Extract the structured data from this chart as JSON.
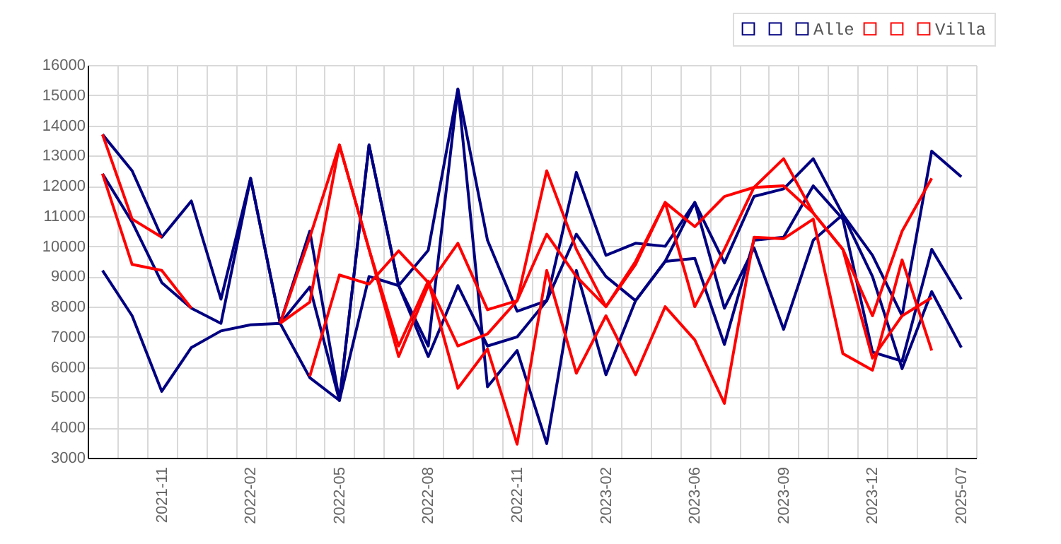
{
  "chart_data": {
    "type": "line",
    "categories": [
      null,
      null,
      "2021-11",
      null,
      null,
      "2022-02",
      null,
      null,
      "2022-05",
      null,
      null,
      "2022-08",
      null,
      null,
      "2022-11",
      null,
      null,
      "2023-02",
      null,
      null,
      "2023-06",
      null,
      null,
      "2023-09",
      null,
      null,
      "2023-12",
      null,
      null,
      "2025-07"
    ],
    "series": [
      {
        "color": "#000080",
        "values": [
          13700,
          12500,
          10300,
          11500,
          8250,
          12250,
          7450,
          10500,
          4900,
          13350,
          8700,
          6700,
          15200,
          10200,
          7850,
          8200,
          12450,
          9700,
          10100,
          10000,
          11450,
          9450,
          11650,
          11900,
          12900,
          11050,
          9700,
          7700,
          13150,
          12300
        ]
      },
      {
        "color": "#000080",
        "values": [
          12400,
          10800,
          8800,
          7950,
          7450,
          12250,
          7450,
          8650,
          4900,
          13350,
          8700,
          9870,
          15200,
          5350,
          6550,
          3470,
          9200,
          5750,
          8200,
          9500,
          9600,
          6750,
          10200,
          10300,
          12000,
          10900,
          6500,
          6200,
          9900,
          8250
        ]
      },
      {
        "name": "Alle",
        "color": "#000080",
        "values": [
          9200,
          7700,
          5200,
          6650,
          7200,
          7400,
          7450,
          5650,
          4900,
          9000,
          8700,
          6350,
          8700,
          6700,
          7000,
          8200,
          10400,
          9000,
          8200,
          9500,
          11450,
          7950,
          9950,
          7250,
          10200,
          11050,
          9000,
          5950,
          8500,
          6650
        ]
      },
      {
        "color": "#ff0000",
        "values": [
          13700,
          10900,
          10300,
          null,
          null,
          null,
          7450,
          10300,
          13350,
          9900,
          6350,
          8700,
          10100,
          7900,
          8200,
          12500,
          9900,
          8000,
          9500,
          11450,
          10650,
          11650,
          11950,
          12000,
          11100,
          9900,
          7700,
          10500,
          12250,
          null
        ]
      },
      {
        "color": "#ff0000",
        "values": [
          12400,
          9400,
          9200,
          7950,
          null,
          null,
          7450,
          8150,
          13350,
          9900,
          6700,
          8850,
          5300,
          6600,
          3450,
          9200,
          5800,
          7700,
          5750,
          8000,
          6900,
          4800,
          10300,
          10250,
          10900,
          6450,
          5900,
          9550,
          6550,
          null
        ]
      },
      {
        "name": "Villa",
        "color": "#ff0000",
        "values": [
          null,
          null,
          null,
          null,
          null,
          null,
          null,
          5700,
          9050,
          8750,
          9850,
          8800,
          6700,
          7100,
          8200,
          10400,
          9000,
          8000,
          9400,
          11450,
          8000,
          9900,
          11950,
          12900,
          11100,
          9900,
          6300,
          7700,
          8300,
          null
        ]
      }
    ],
    "ylim": [
      3000,
      16000
    ],
    "yticks": [
      3000,
      4000,
      5000,
      6000,
      7000,
      8000,
      9000,
      10000,
      11000,
      12000,
      13000,
      14000,
      15000,
      16000
    ],
    "grid": true,
    "legend": "top right"
  }
}
